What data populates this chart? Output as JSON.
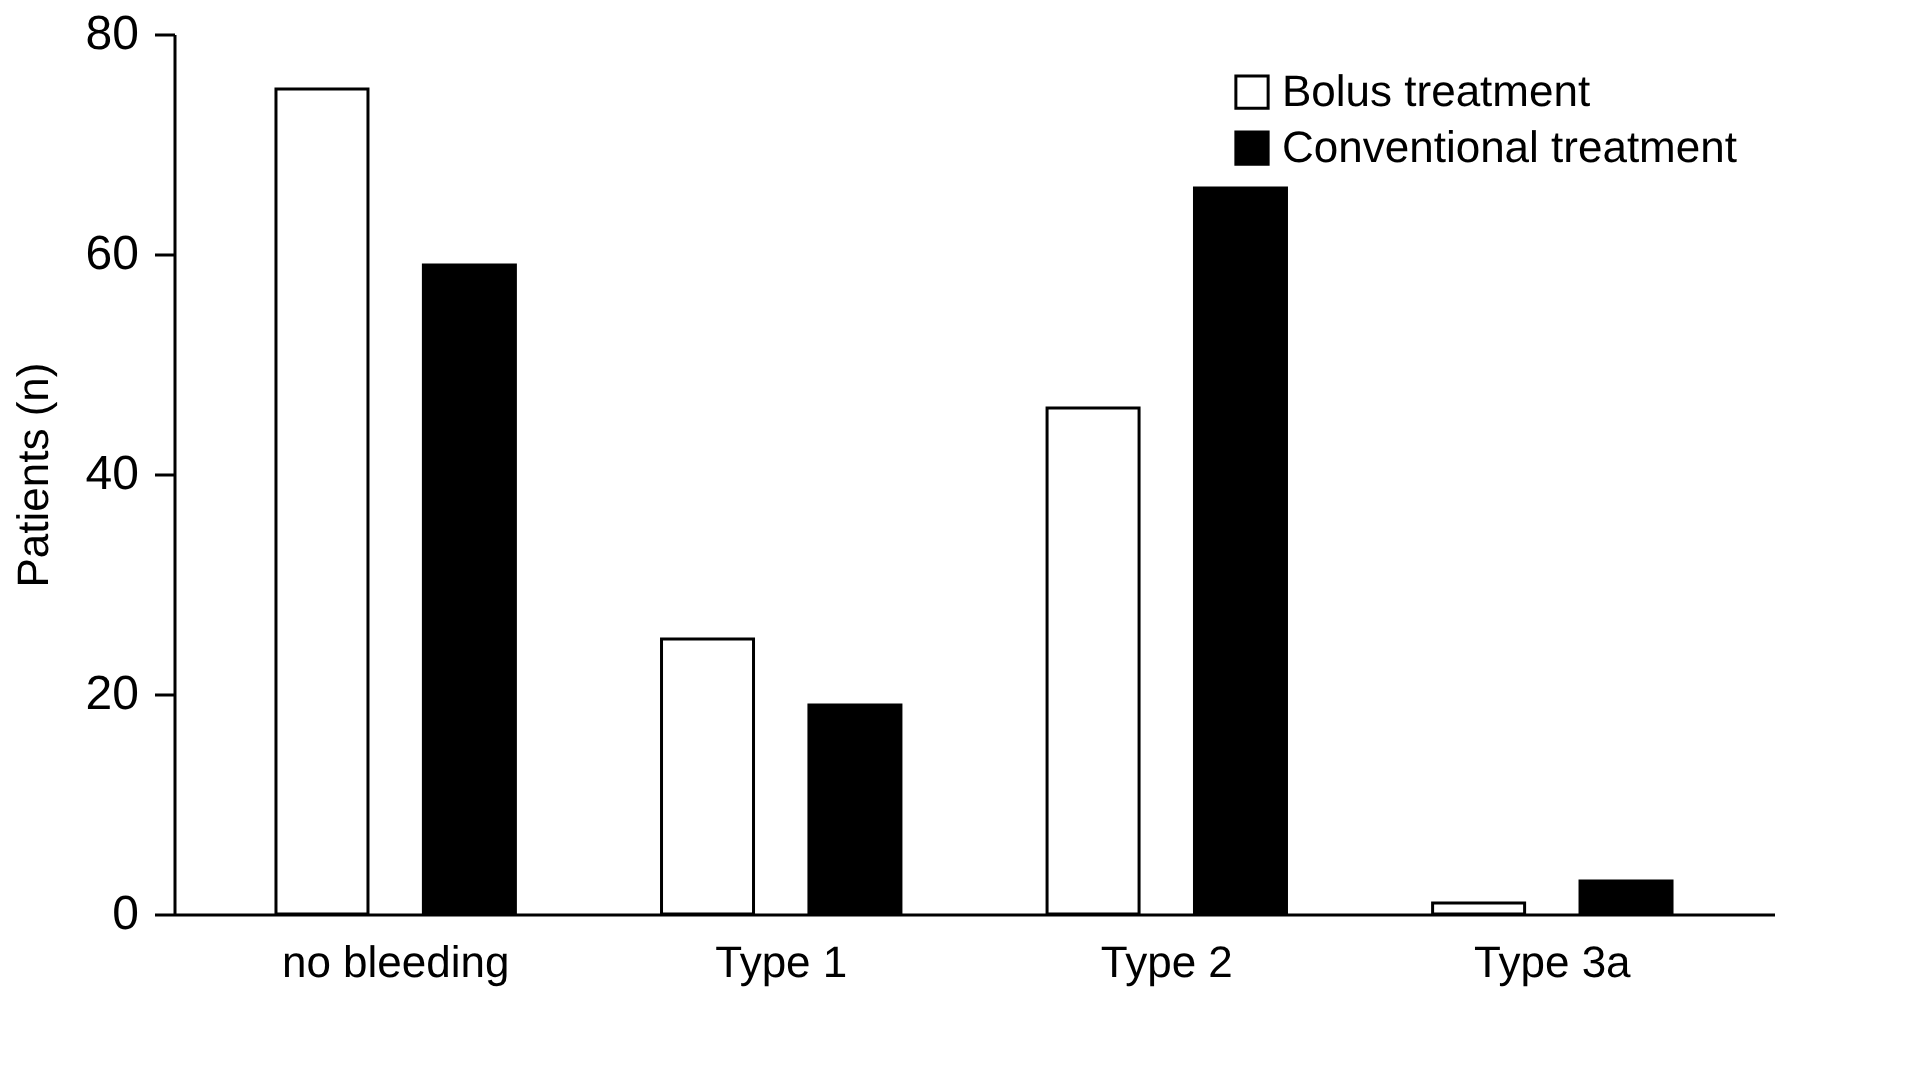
{
  "chart_data": {
    "type": "bar",
    "ylabel": "Patients (n)",
    "categories": [
      "no bleeding",
      "Type 1",
      "Type 2",
      "Type 3a"
    ],
    "series": [
      {
        "name": "Bolus treatment",
        "color": "#ffffff",
        "values": [
          75,
          25,
          46,
          1
        ]
      },
      {
        "name": "Conventional treatment",
        "color": "#000000",
        "values": [
          59,
          19,
          66,
          3
        ]
      }
    ],
    "ylim": [
      0,
      80
    ],
    "yticks": [
      0,
      20,
      40,
      60,
      80
    ],
    "grid": false,
    "legend": "top right"
  }
}
